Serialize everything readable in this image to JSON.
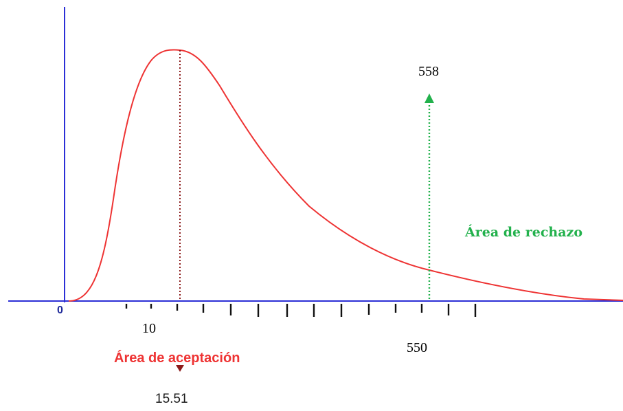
{
  "diagram": {
    "origin_label": "0",
    "tick_label_left": "10",
    "mode_value_label": "15.51",
    "critical_value_label": "550",
    "arrow_value_label": "558",
    "acceptance_label": "Área de aceptación",
    "rejection_label": "Área de rechazo",
    "colors": {
      "axis": "#2b2fd6",
      "curve": "#ee3333",
      "mode_line": "#8b1a1a",
      "critical_line": "#22b14c",
      "acceptance_text": "#ee3333",
      "rejection_text": "#22b14c"
    }
  }
}
